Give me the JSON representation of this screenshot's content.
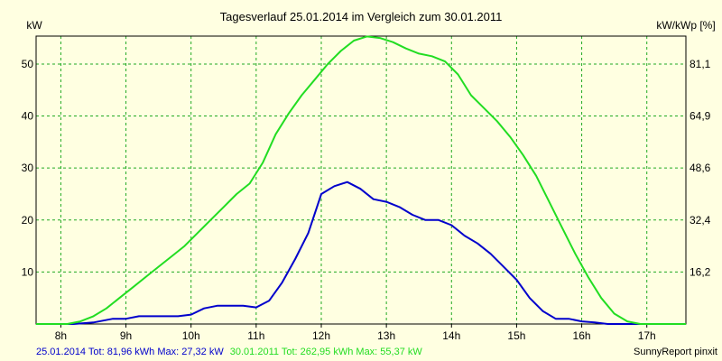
{
  "chart_data": {
    "type": "line",
    "title": "Tagesverlauf 25.01.2014 im Vergleich zum 30.01.2011",
    "ylabel_left": "kW",
    "ylabel_right": "kW/kWp [%]",
    "xlim": [
      7.62,
      17.6
    ],
    "ylim": [
      0,
      55.37
    ],
    "y_ticks": [
      10,
      20,
      30,
      40,
      50
    ],
    "y_right_ticks": [
      "16,2",
      "32,4",
      "48,6",
      "64,9",
      "81,1"
    ],
    "x_ticks": [
      {
        "value": 8,
        "label": "8h"
      },
      {
        "value": 9,
        "label": "9h"
      },
      {
        "value": 10,
        "label": "10h"
      },
      {
        "value": 11,
        "label": "11h"
      },
      {
        "value": 12,
        "label": "12h"
      },
      {
        "value": 13,
        "label": "13h"
      },
      {
        "value": 14,
        "label": "14h"
      },
      {
        "value": 15,
        "label": "15h"
      },
      {
        "value": 16,
        "label": "16h"
      },
      {
        "value": 17,
        "label": "17h"
      }
    ],
    "grid": true,
    "series": [
      {
        "name": "25.01.2014 Tot: 81,96 kWh Max: 27,32 kW",
        "color": "#0000cc",
        "x": [
          7.62,
          8.2,
          8.5,
          8.8,
          9.0,
          9.2,
          9.5,
          9.8,
          10.0,
          10.2,
          10.4,
          10.6,
          10.8,
          11.0,
          11.2,
          11.4,
          11.6,
          11.8,
          12.0,
          12.2,
          12.4,
          12.6,
          12.8,
          13.0,
          13.2,
          13.4,
          13.6,
          13.8,
          14.0,
          14.2,
          14.4,
          14.6,
          14.8,
          15.0,
          15.2,
          15.4,
          15.6,
          15.8,
          16.0,
          16.2,
          16.4,
          16.6,
          16.8,
          17.0,
          17.3,
          17.6
        ],
        "y": [
          0,
          0,
          0.3,
          1.0,
          1.0,
          1.5,
          1.5,
          1.5,
          1.8,
          3.0,
          3.5,
          3.5,
          3.5,
          3.2,
          4.5,
          8.0,
          12.5,
          17.5,
          25.0,
          26.5,
          27.3,
          26.0,
          24.0,
          23.5,
          22.5,
          21.0,
          20.0,
          20.0,
          19.0,
          17.0,
          15.5,
          13.5,
          11.0,
          8.5,
          5.0,
          2.5,
          1.0,
          1.0,
          0.5,
          0.3,
          0,
          0,
          0,
          0,
          0,
          0
        ]
      },
      {
        "name": "30.01.2011 Tot: 262,95 kWh Max: 55,37 kW",
        "color": "#22dd22",
        "x": [
          7.62,
          7.9,
          8.1,
          8.3,
          8.5,
          8.7,
          8.9,
          9.1,
          9.3,
          9.5,
          9.7,
          9.9,
          10.1,
          10.3,
          10.5,
          10.7,
          10.9,
          11.1,
          11.3,
          11.5,
          11.7,
          11.9,
          12.1,
          12.3,
          12.5,
          12.7,
          12.9,
          13.1,
          13.3,
          13.5,
          13.7,
          13.9,
          14.1,
          14.3,
          14.5,
          14.7,
          14.9,
          15.1,
          15.3,
          15.5,
          15.7,
          15.9,
          16.1,
          16.3,
          16.5,
          16.7,
          16.9,
          17.1,
          17.3,
          17.6
        ],
        "y": [
          0,
          0,
          0,
          0.5,
          1.5,
          3.0,
          5.0,
          7.0,
          9.0,
          11.0,
          13.0,
          15.0,
          17.5,
          20.0,
          22.5,
          25.0,
          27.0,
          31.0,
          36.5,
          40.5,
          44.0,
          47.0,
          50.0,
          52.5,
          54.5,
          55.3,
          55.0,
          54.2,
          53.0,
          52.0,
          51.5,
          50.5,
          48.0,
          44.0,
          41.5,
          39.0,
          36.0,
          32.5,
          28.5,
          23.5,
          18.5,
          13.5,
          9.0,
          5.0,
          2.0,
          0.5,
          0,
          0,
          0,
          0
        ]
      }
    ],
    "footer_left_1": "25.01.2014 Tot: 81,96 kWh Max: 27,32 kW",
    "footer_left_2": "30.01.2011 Tot: 262,95 kWh Max: 55,37 kW",
    "footer_right": "SunnyReport pinxit",
    "colors": {
      "background": "#ffffe1",
      "grid": "#22aa22",
      "axis": "#000000"
    }
  }
}
